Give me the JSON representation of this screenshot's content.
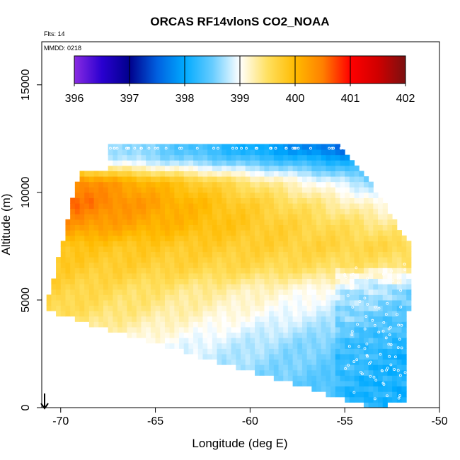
{
  "chart_data": {
    "type": "heatmap",
    "title": "ORCAS RF14vlonS CO2_NOAA",
    "annotations": {
      "flts": "Flts: 14",
      "mmdd": "MMDD: 0218"
    },
    "xlabel": "Longitude (deg E)",
    "ylabel": "Altitude (m)",
    "xlim": [
      -71,
      -50
    ],
    "ylim": [
      0,
      17000
    ],
    "x_ticks": [
      -70,
      -65,
      -60,
      -55,
      -50
    ],
    "y_ticks": [
      0,
      5000,
      10000,
      15000
    ],
    "colorbar": {
      "min": 396,
      "max": 402,
      "ticks": [
        396,
        397,
        398,
        399,
        400,
        401,
        402
      ],
      "stops": [
        {
          "value": 396.0,
          "color": "#8a2be2"
        },
        {
          "value": 396.5,
          "color": "#2a00d0"
        },
        {
          "value": 397.0,
          "color": "#00008c"
        },
        {
          "value": 397.5,
          "color": "#0060e0"
        },
        {
          "value": 398.0,
          "color": "#00aaff"
        },
        {
          "value": 398.5,
          "color": "#66ccff"
        },
        {
          "value": 399.0,
          "color": "#ffffff"
        },
        {
          "value": 399.5,
          "color": "#ffe060"
        },
        {
          "value": 400.0,
          "color": "#ffbb00"
        },
        {
          "value": 400.5,
          "color": "#ff8000"
        },
        {
          "value": 401.0,
          "color": "#ff0000"
        },
        {
          "value": 401.5,
          "color": "#d00000"
        },
        {
          "value": 402.0,
          "color": "#7a1010"
        }
      ]
    },
    "field_extent": {
      "top_left": [
        -69.0,
        11000
      ],
      "top_right": [
        -54.0,
        11000
      ],
      "right_top": [
        -51.5,
        7500
      ],
      "right_bottom": [
        -51.8,
        300
      ],
      "bottom": [
        -53.5,
        0
      ],
      "left_bottom": [
        -70.8,
        4500
      ]
    },
    "layers": [
      {
        "alt": 12000,
        "west": 399.0,
        "east": 397.2
      },
      {
        "alt": 11500,
        "west": 399.0,
        "east": 397.8
      },
      {
        "alt": 10500,
        "west": 400.6,
        "east": 398.4
      },
      {
        "alt": 9500,
        "west": 400.7,
        "east": 398.9
      },
      {
        "alt": 8500,
        "west": 400.4,
        "east": 399.3
      },
      {
        "alt": 7500,
        "west": 399.9,
        "east": 399.6
      },
      {
        "alt": 6500,
        "west": 399.8,
        "east": 399.4
      },
      {
        "alt": 5500,
        "west": 399.7,
        "east": 398.8
      },
      {
        "alt": 4500,
        "west": 399.6,
        "east": 398.6
      },
      {
        "alt": 3000,
        "west": 399.3,
        "east": 398.3
      },
      {
        "alt": 1000,
        "west": 399.0,
        "east": 398.2
      }
    ],
    "grid": false,
    "legend_position": "top"
  }
}
